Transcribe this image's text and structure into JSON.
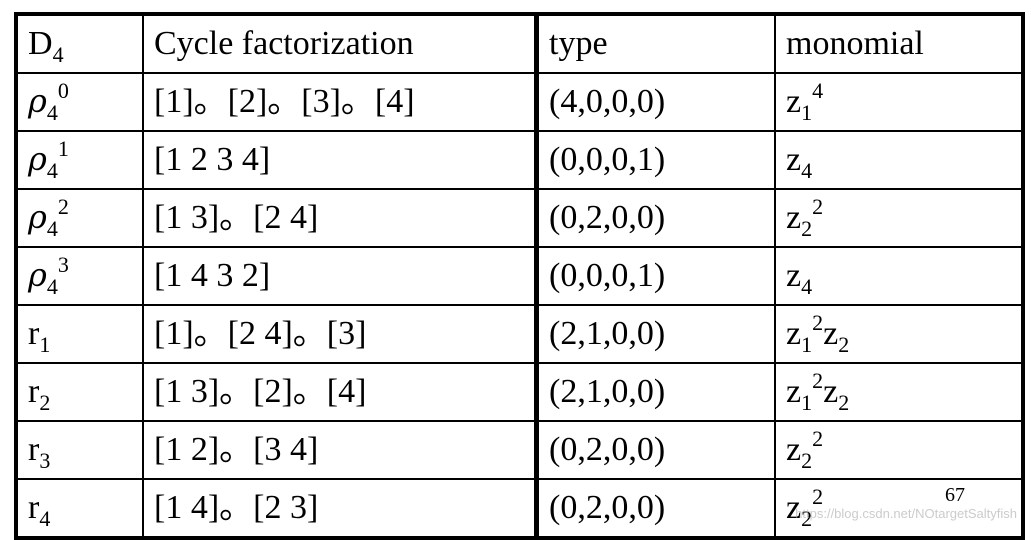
{
  "header": {
    "col1_main": "D",
    "col1_sub": "4",
    "col2": "Cycle factorization",
    "col3": "type",
    "col4": "monomial"
  },
  "rows": [
    {
      "g": "ρ",
      "g_sub": "4",
      "g_sup": "0",
      "cycle": "[1]。[2]。[3]。[4]",
      "type": "(4,0,0,0)",
      "m": [
        [
          "z",
          "1",
          "4"
        ]
      ]
    },
    {
      "g": "ρ",
      "g_sub": "4",
      "g_sup": "1",
      "cycle": "[1 2 3 4]",
      "type": "(0,0,0,1)",
      "m": [
        [
          "z",
          "4",
          ""
        ]
      ]
    },
    {
      "g": "ρ",
      "g_sub": "4",
      "g_sup": "2",
      "cycle": "[1 3]。[2 4]",
      "type": "(0,2,0,0)",
      "m": [
        [
          "z",
          "2",
          "2"
        ]
      ]
    },
    {
      "g": "ρ",
      "g_sub": "4",
      "g_sup": "3",
      "cycle": "[1 4 3 2]",
      "type": "(0,0,0,1)",
      "m": [
        [
          "z",
          "4",
          ""
        ]
      ]
    },
    {
      "g": "r",
      "g_sub": "1",
      "g_sup": "",
      "cycle": "[1]。[2 4]。[3]",
      "type": "(2,1,0,0)",
      "m": [
        [
          "z",
          "1",
          "2"
        ],
        [
          "z",
          "2",
          ""
        ]
      ]
    },
    {
      "g": "r",
      "g_sub": "2",
      "g_sup": "",
      "cycle": "[1 3]。[2]。[4]",
      "type": "(2,1,0,0)",
      "m": [
        [
          "z",
          "1",
          "2"
        ],
        [
          "z",
          "2",
          ""
        ]
      ]
    },
    {
      "g": "r",
      "g_sub": "3",
      "g_sup": "",
      "cycle": "[1 2]。[3 4]",
      "type": "(0,2,0,0)",
      "m": [
        [
          "z",
          "2",
          "2"
        ]
      ]
    },
    {
      "g": "r",
      "g_sub": "4",
      "g_sup": "",
      "cycle": "[1 4]。[2 3]",
      "type": "(0,2,0,0)",
      "m": [
        [
          "z",
          "2",
          "2"
        ]
      ]
    }
  ],
  "page_number": "67",
  "watermark": "https://blog.csdn.net/NOtargetSaltyfish"
}
